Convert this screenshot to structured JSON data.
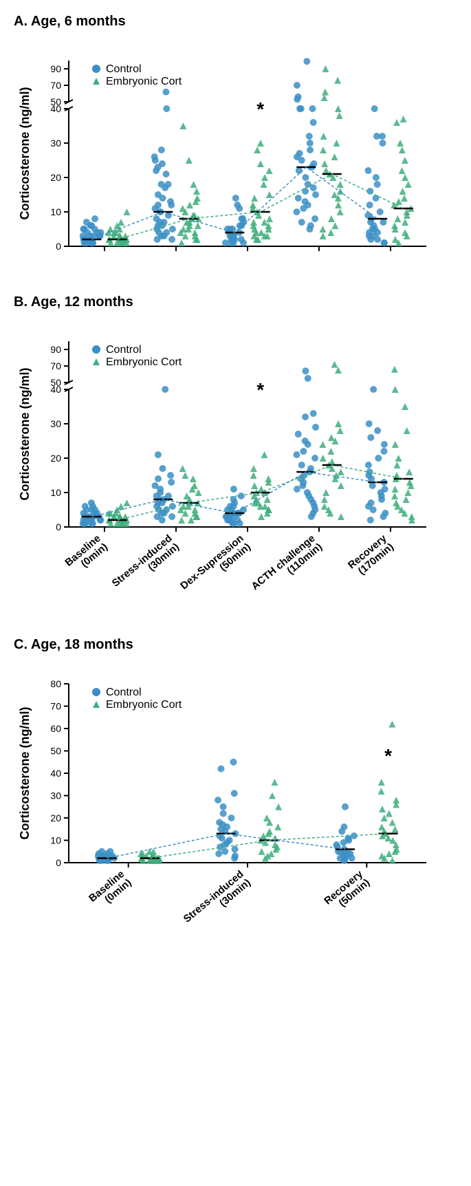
{
  "colors": {
    "control": "#3b8fc6",
    "cort": "#3fae7c",
    "median": "#000000",
    "axis": "#000000",
    "bg": "#ffffff"
  },
  "legend": {
    "control": "Control",
    "cort": "Embryonic Cort"
  },
  "ylabel": "Corticosterone (ng/ml)",
  "marker": {
    "size": 5,
    "jitter": 14
  },
  "panels": [
    {
      "id": "A",
      "title": "A. Age, 6 months",
      "ybreak": {
        "low_max": 40,
        "high_min": 50,
        "high_max": 100,
        "high_step": 20,
        "low_step": 10
      },
      "show_x_labels": false,
      "categories": [
        "Baseline\n(0min)",
        "Stress-induced\n(30min)",
        "Dex-Supression\n(50min)",
        "ACTH challenge\n(110min)",
        "Recovery\n(170min)"
      ],
      "sig_category_index": 2,
      "groups": [
        {
          "name": "control",
          "medians": [
            2,
            10,
            4,
            23,
            8
          ],
          "points": [
            [
              1,
              1,
              1,
              1,
              2,
              2,
              2,
              3,
              3,
              3,
              4,
              4,
              5,
              5,
              6,
              7,
              8,
              1,
              1,
              2,
              2,
              3,
              3,
              4,
              5,
              6
            ],
            [
              2,
              2,
              3,
              3,
              4,
              4,
              5,
              5,
              6,
              6,
              7,
              7,
              8,
              9,
              10,
              10,
              11,
              12,
              12,
              13,
              14,
              15,
              17,
              18,
              18,
              21,
              22,
              23,
              24,
              25,
              26,
              28,
              40,
              62
            ],
            [
              1,
              1,
              1,
              2,
              2,
              2,
              3,
              3,
              3,
              4,
              4,
              5,
              5,
              6,
              6,
              7,
              8,
              8,
              11,
              12,
              14,
              1,
              2,
              3,
              4,
              5
            ],
            [
              5,
              6,
              7,
              8,
              10,
              11,
              12,
              13,
              14,
              15,
              16,
              17,
              18,
              20,
              22,
              23,
              24,
              25,
              26,
              27,
              28,
              30,
              32,
              36,
              40,
              41,
              42,
              53,
              56,
              70,
              99
            ],
            [
              1,
              1,
              2,
              2,
              3,
              3,
              4,
              4,
              5,
              5,
              6,
              7,
              7,
              8,
              9,
              10,
              12,
              14,
              16,
              18,
              20,
              22,
              30,
              32,
              32,
              44
            ]
          ]
        },
        {
          "name": "cort",
          "medians": [
            2,
            8,
            10,
            21,
            11
          ],
          "points": [
            [
              1,
              1,
              1,
              1,
              2,
              2,
              2,
              2,
              3,
              3,
              3,
              4,
              4,
              5,
              6,
              7,
              10,
              1,
              1,
              2,
              2,
              3,
              4,
              5
            ],
            [
              1,
              2,
              2,
              3,
              3,
              4,
              4,
              5,
              5,
              6,
              6,
              7,
              7,
              8,
              8,
              9,
              9,
              10,
              11,
              12,
              13,
              14,
              16,
              18,
              25,
              35
            ],
            [
              2,
              2,
              3,
              3,
              3,
              4,
              4,
              5,
              5,
              6,
              6,
              7,
              7,
              8,
              9,
              10,
              11,
              12,
              14,
              15,
              18,
              20,
              22,
              24,
              28,
              30
            ],
            [
              3,
              4,
              5,
              6,
              8,
              10,
              12,
              14,
              15,
              16,
              18,
              20,
              21,
              22,
              24,
              26,
              28,
              30,
              32,
              38,
              42,
              55,
              62,
              76,
              90
            ],
            [
              1,
              2,
              3,
              4,
              5,
              6,
              7,
              8,
              9,
              10,
              11,
              12,
              13,
              14,
              16,
              18,
              20,
              22,
              25,
              28,
              30,
              36,
              37
            ]
          ]
        }
      ]
    },
    {
      "id": "B",
      "title": "B. Age, 12 months",
      "ybreak": {
        "low_max": 40,
        "high_min": 50,
        "high_max": 100,
        "high_step": 20,
        "low_step": 10
      },
      "show_x_labels": true,
      "categories": [
        "Baseline\n(0min)",
        "Stress-induced\n(30min)",
        "Dex-Supression\n(50min)",
        "ACTH challenge\n(110min)",
        "Recovery\n(170min)"
      ],
      "sig_category_index": 2,
      "groups": [
        {
          "name": "control",
          "medians": [
            3,
            8,
            4,
            16,
            13
          ],
          "points": [
            [
              1,
              1,
              1,
              2,
              2,
              2,
              2,
              3,
              3,
              3,
              3,
              4,
              4,
              4,
              5,
              5,
              5,
              6,
              6,
              7,
              1,
              1,
              2,
              2,
              3
            ],
            [
              2,
              3,
              3,
              4,
              4,
              5,
              5,
              6,
              6,
              7,
              7,
              8,
              8,
              9,
              9,
              10,
              11,
              12,
              13,
              14,
              15,
              17,
              21,
              42
            ],
            [
              1,
              1,
              2,
              2,
              2,
              3,
              3,
              3,
              4,
              4,
              4,
              5,
              5,
              6,
              7,
              8,
              9,
              11,
              1,
              2,
              3,
              4,
              5,
              6
            ],
            [
              3,
              4,
              5,
              6,
              7,
              8,
              9,
              10,
              11,
              12,
              13,
              14,
              15,
              16,
              17,
              18,
              20,
              21,
              22,
              24,
              25,
              27,
              29,
              32,
              33,
              55,
              64
            ],
            [
              2,
              3,
              4,
              5,
              6,
              7,
              8,
              9,
              10,
              11,
              12,
              13,
              14,
              15,
              16,
              18,
              20,
              22,
              24,
              26,
              28,
              30,
              42
            ]
          ]
        },
        {
          "name": "cort",
          "medians": [
            2,
            7,
            10,
            18,
            14
          ],
          "points": [
            [
              1,
              1,
              1,
              1,
              2,
              2,
              2,
              2,
              3,
              3,
              3,
              3,
              4,
              4,
              5,
              6,
              7,
              1,
              1,
              2,
              2,
              3,
              4
            ],
            [
              2,
              2,
              3,
              3,
              4,
              4,
              5,
              5,
              6,
              6,
              7,
              7,
              8,
              9,
              10,
              11,
              12,
              14,
              15,
              17
            ],
            [
              3,
              4,
              5,
              5,
              6,
              6,
              7,
              7,
              8,
              8,
              9,
              10,
              10,
              11,
              12,
              13,
              14,
              15,
              17,
              21
            ],
            [
              3,
              4,
              5,
              6,
              8,
              10,
              12,
              14,
              15,
              16,
              17,
              18,
              19,
              20,
              22,
              24,
              25,
              26,
              28,
              30,
              65,
              72
            ],
            [
              2,
              3,
              4,
              5,
              6,
              7,
              8,
              9,
              10,
              11,
              12,
              13,
              14,
              15,
              16,
              18,
              20,
              24,
              28,
              35,
              44,
              66
            ]
          ]
        }
      ]
    },
    {
      "id": "C",
      "title": "C. Age, 18 months",
      "ybreak": null,
      "ylim": [
        0,
        80
      ],
      "ystep": 10,
      "show_x_labels": true,
      "categories": [
        "Baseline\n(0min)",
        "Stress-induced\n(30min)",
        "Recovery\n(50min)"
      ],
      "sig_category_index": 2,
      "groups": [
        {
          "name": "control",
          "medians": [
            2,
            13,
            6
          ],
          "points": [
            [
              1,
              1,
              1,
              1,
              2,
              2,
              2,
              2,
              2,
              3,
              3,
              3,
              3,
              4,
              4,
              5,
              5,
              1,
              1,
              2,
              2,
              3
            ],
            [
              2,
              3,
              4,
              5,
              6,
              7,
              8,
              9,
              10,
              11,
              12,
              13,
              14,
              15,
              16,
              17,
              18,
              20,
              22,
              25,
              28,
              31,
              42,
              45
            ],
            [
              1,
              2,
              3,
              3,
              4,
              4,
              5,
              5,
              6,
              7,
              8,
              9,
              10,
              11,
              12,
              14,
              16,
              25,
              1,
              2,
              3,
              4
            ]
          ]
        },
        {
          "name": "cort",
          "medians": [
            2,
            10,
            13
          ],
          "points": [
            [
              1,
              1,
              1,
              1,
              2,
              2,
              2,
              2,
              2,
              3,
              3,
              3,
              4,
              4,
              5,
              5,
              1,
              1,
              2,
              2,
              3
            ],
            [
              2,
              3,
              4,
              5,
              6,
              7,
              8,
              9,
              10,
              11,
              12,
              13,
              14,
              16,
              18,
              20,
              25,
              30,
              36
            ],
            [
              1,
              2,
              3,
              4,
              5,
              6,
              8,
              10,
              11,
              12,
              13,
              14,
              15,
              16,
              18,
              20,
              22,
              24,
              26,
              28,
              32,
              36,
              62
            ]
          ]
        }
      ]
    }
  ]
}
